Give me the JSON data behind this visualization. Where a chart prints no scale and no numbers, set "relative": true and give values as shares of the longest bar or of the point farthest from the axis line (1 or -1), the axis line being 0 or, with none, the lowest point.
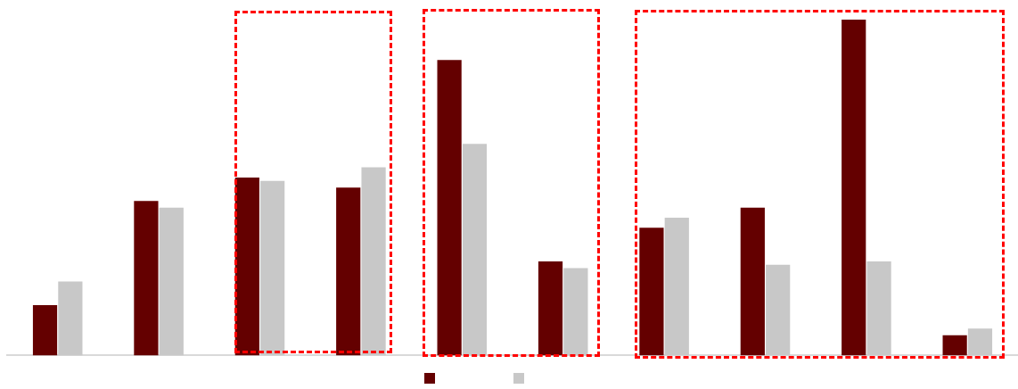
{
  "chart_data": {
    "type": "bar",
    "relative": true,
    "categories": [
      null,
      null,
      null,
      null,
      null,
      null,
      null,
      null,
      null,
      null
    ],
    "series": [
      {
        "color": "#640000",
        "values": [
          0.15,
          0.46,
          0.53,
          0.5,
          0.88,
          0.28,
          0.38,
          0.44,
          1,
          0.06
        ]
      },
      {
        "color": "#c8c8c8",
        "values": [
          0.22,
          0.44,
          0.52,
          0.56,
          0.63,
          0.26,
          0.41,
          0.27,
          0.28,
          0.08
        ]
      }
    ],
    "grid": false
  }
}
